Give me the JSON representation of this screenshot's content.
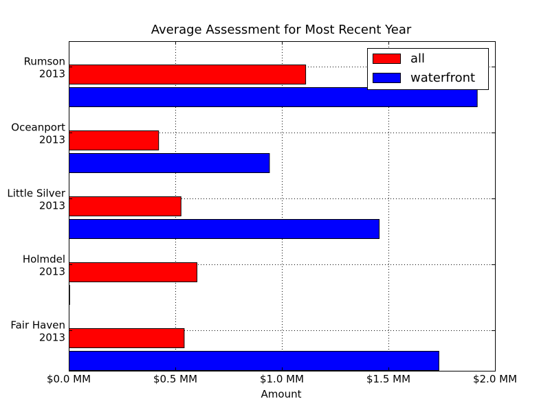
{
  "chart_data": {
    "type": "bar",
    "orientation": "horizontal",
    "title": "Average Assessment for Most Recent Year",
    "xlabel": "Amount",
    "ylabel": "",
    "xlim": [
      0,
      2.0
    ],
    "x_ticks": [
      0,
      0.5,
      1.0,
      1.5,
      2.0
    ],
    "x_tick_labels": [
      "$0.0 MM",
      "$0.5 MM",
      "$1.0 MM",
      "$1.5 MM",
      "$2.0 MM"
    ],
    "categories": [
      [
        "Rumson",
        "2013"
      ],
      [
        "Oceanport",
        "2013"
      ],
      [
        "Little Silver",
        "2013"
      ],
      [
        "Holmdel",
        "2013"
      ],
      [
        "Fair Haven",
        "2013"
      ]
    ],
    "series": [
      {
        "name": "all",
        "color": "#ff0000",
        "values": [
          1.11,
          0.42,
          0.525,
          0.6,
          0.54
        ]
      },
      {
        "name": "waterfront",
        "color": "#0000ff",
        "values": [
          1.915,
          0.94,
          1.455,
          0,
          1.735
        ]
      }
    ],
    "grid": true,
    "legend_position": "top-right"
  }
}
